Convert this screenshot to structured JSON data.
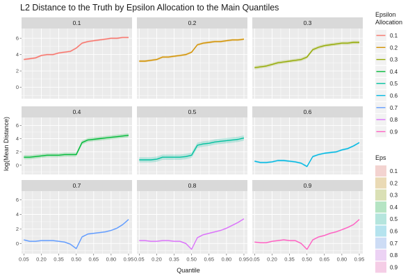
{
  "chart_data": {
    "type": "line",
    "title": "L2 Distance to the Truth by Epsilon Allocation to the Main Quantiles",
    "xlabel": "Quantile",
    "ylabel": "log(Mean Distance)",
    "xlim": [
      0.03,
      0.98
    ],
    "ylim": [
      -1.4,
      7.2
    ],
    "x_ticks": [
      0.05,
      0.2,
      0.35,
      0.5,
      0.65,
      0.8,
      0.95
    ],
    "x_tick_labels": [
      "0.05",
      "0.20",
      "0.35",
      "0.50",
      "0.65",
      "0.80",
      "0.95"
    ],
    "y_ticks": [
      0,
      2,
      4,
      6
    ],
    "y_tick_labels": [
      "0",
      "2",
      "4",
      "6"
    ],
    "grid": true,
    "facet_layout": "3x3",
    "legend_placement": "right",
    "legends": [
      {
        "title_lines": [
          "Epsilon",
          "Allocation"
        ],
        "kind": "line",
        "entries": [
          "0.1",
          "0.2",
          "0.3",
          "0.4",
          "0.5",
          "0.6",
          "0.7",
          "0.8",
          "0.9"
        ]
      },
      {
        "title_lines": [
          "Eps"
        ],
        "kind": "fill",
        "entries": [
          "0.1",
          "0.2",
          "0.3",
          "0.4",
          "0.5",
          "0.6",
          "0.7",
          "0.8",
          "0.9"
        ]
      }
    ],
    "colors": [
      "#F8766D",
      "#D39200",
      "#93AA00",
      "#00BA38",
      "#00C19F",
      "#00B9E3",
      "#619CFF",
      "#DB72FB",
      "#FF61C3"
    ],
    "x": [
      0.05,
      0.1,
      0.15,
      0.2,
      0.25,
      0.3,
      0.35,
      0.4,
      0.45,
      0.5,
      0.55,
      0.6,
      0.65,
      0.7,
      0.75,
      0.8,
      0.85,
      0.9,
      0.95
    ],
    "series": [
      {
        "name": "0.1",
        "values": [
          3.4,
          3.5,
          3.6,
          3.9,
          4.0,
          4.0,
          4.2,
          4.3,
          4.4,
          4.8,
          5.4,
          5.6,
          5.7,
          5.8,
          5.9,
          6.0,
          6.0,
          6.1,
          6.1
        ],
        "band": 0.12
      },
      {
        "name": "0.2",
        "values": [
          3.2,
          3.2,
          3.3,
          3.4,
          3.7,
          3.7,
          3.8,
          3.9,
          4.0,
          4.3,
          5.2,
          5.4,
          5.5,
          5.6,
          5.6,
          5.7,
          5.8,
          5.8,
          5.9
        ],
        "band": 0.14
      },
      {
        "name": "0.3",
        "values": [
          2.4,
          2.5,
          2.6,
          2.8,
          3.0,
          3.1,
          3.2,
          3.3,
          3.4,
          3.7,
          4.6,
          4.9,
          5.1,
          5.2,
          5.3,
          5.4,
          5.4,
          5.5,
          5.5
        ],
        "band": 0.2
      },
      {
        "name": "0.4",
        "values": [
          1.2,
          1.2,
          1.3,
          1.4,
          1.5,
          1.5,
          1.5,
          1.6,
          1.6,
          1.6,
          3.4,
          3.8,
          3.9,
          4.0,
          4.1,
          4.2,
          4.3,
          4.4,
          4.5
        ],
        "band": 0.3
      },
      {
        "name": "0.5",
        "values": [
          0.8,
          0.8,
          0.8,
          0.9,
          1.2,
          1.2,
          1.2,
          1.2,
          1.3,
          1.5,
          3.0,
          3.2,
          3.3,
          3.5,
          3.6,
          3.7,
          3.8,
          3.9,
          4.1
        ],
        "band": 0.4
      },
      {
        "name": "0.6",
        "values": [
          0.6,
          0.4,
          0.4,
          0.5,
          0.7,
          0.7,
          0.6,
          0.5,
          0.3,
          -0.2,
          1.3,
          1.6,
          1.8,
          1.9,
          2.0,
          2.3,
          2.5,
          2.9,
          3.4
        ],
        "band": 0.15
      },
      {
        "name": "0.7",
        "values": [
          0.5,
          0.3,
          0.3,
          0.4,
          0.4,
          0.4,
          0.3,
          0.2,
          -0.1,
          -0.7,
          0.9,
          1.3,
          1.4,
          1.5,
          1.6,
          1.8,
          2.1,
          2.6,
          3.3
        ],
        "band": 0.1
      },
      {
        "name": "0.8",
        "values": [
          0.4,
          0.4,
          0.3,
          0.3,
          0.4,
          0.4,
          0.3,
          0.3,
          0.0,
          -0.8,
          0.8,
          1.2,
          1.4,
          1.6,
          1.8,
          2.1,
          2.5,
          2.9,
          3.4
        ],
        "band": 0.1
      },
      {
        "name": "0.9",
        "values": [
          0.2,
          0.1,
          0.1,
          0.3,
          0.4,
          0.5,
          0.4,
          0.4,
          0.0,
          -0.8,
          0.5,
          0.9,
          1.1,
          1.4,
          1.6,
          1.9,
          2.2,
          2.6,
          3.3
        ],
        "band": 0.1
      }
    ]
  }
}
